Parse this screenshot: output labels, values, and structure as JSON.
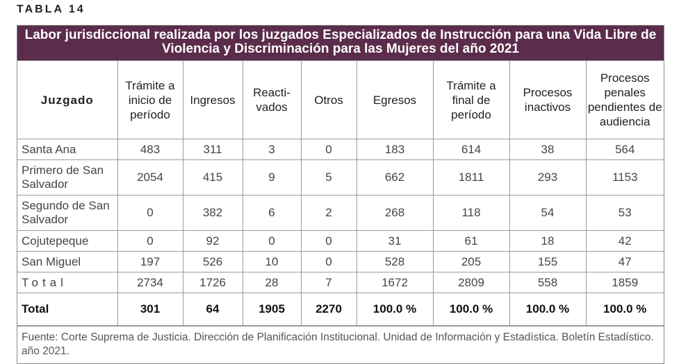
{
  "label": "TABLA 14",
  "title": "Labor jurisdiccional realizada por los juzgados Especializados de Instrucción para una Vida Libre de Violencia y Discriminación para las Mujeres del año 2021",
  "headers": [
    "Juzgado",
    "Trámite a inicio de período",
    "Ingresos",
    "Reacti-vados",
    "Otros",
    "Egresos",
    "Trámite a final de período",
    "Procesos inactivos",
    "Procesos penales pendientes de audiencia"
  ],
  "rows": [
    {
      "name": "Santa Ana",
      "values": [
        "483",
        "311",
        "3",
        "0",
        "183",
        "614",
        "38",
        "564"
      ]
    },
    {
      "name": "Primero de San Salvador",
      "values": [
        "2054",
        "415",
        "9",
        "5",
        "662",
        "1811",
        "293",
        "1153"
      ]
    },
    {
      "name": "Segundo de San Salvador",
      "values": [
        "0",
        "382",
        "6",
        "2",
        "268",
        "118",
        "54",
        "53"
      ]
    },
    {
      "name": "Cojutepeque",
      "values": [
        "0",
        "92",
        "0",
        "0",
        "31",
        "61",
        "18",
        "42"
      ]
    },
    {
      "name": "San Miguel",
      "values": [
        "197",
        "526",
        "10",
        "0",
        "528",
        "205",
        "155",
        "47"
      ]
    },
    {
      "name": "Total",
      "values": [
        "2734",
        "1726",
        "28",
        "7",
        "1672",
        "2809",
        "558",
        "1859"
      ]
    },
    {
      "name": "Total",
      "values": [
        "301",
        "64",
        "1905",
        "2270",
        "100.0 %",
        "100.0 %",
        "100.0 %",
        "100.0 %"
      ]
    }
  ],
  "footnote": "Fuente: Corte Suprema de Justicia. Dirección de Planificación Institucional. Unidad de Información y Estadística. Boletín Estadístico. año 2021."
}
